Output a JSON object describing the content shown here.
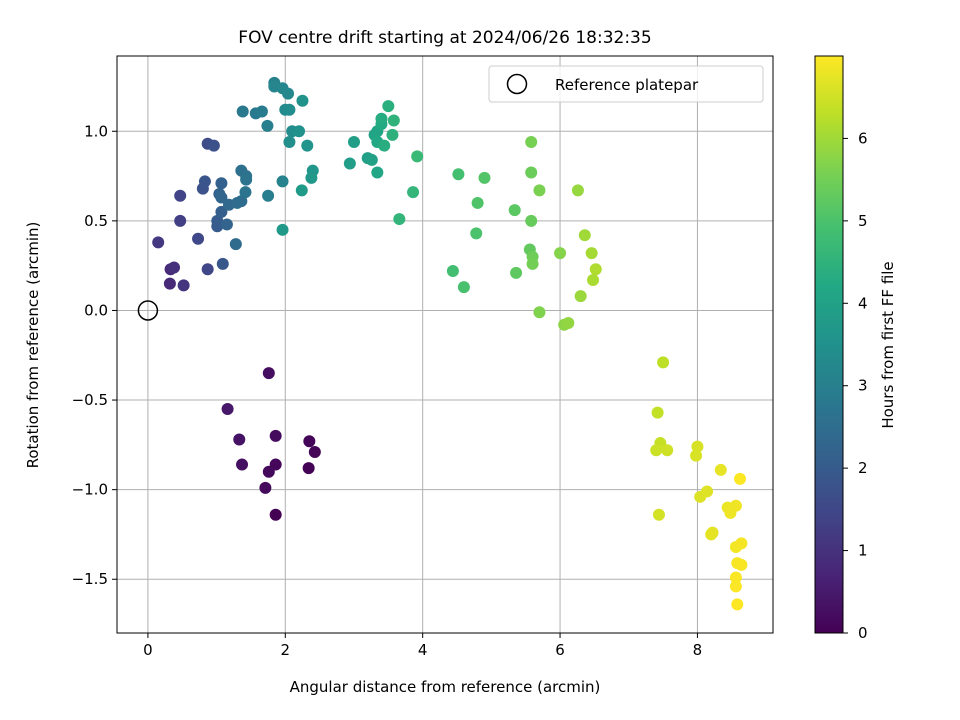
{
  "chart_data": {
    "type": "scatter",
    "title": "FOV centre drift starting at 2024/06/26 18:32:35",
    "xlabel": "Angular distance from reference (arcmin)",
    "ylabel": "Rotation from reference (arcmin)",
    "xlim": [
      -0.45,
      9.1
    ],
    "ylim": [
      -1.8,
      1.42
    ],
    "xticks": [
      0,
      2,
      4,
      6,
      8
    ],
    "yticks": [
      -1.5,
      -1.0,
      -0.5,
      0.0,
      0.5,
      1.0
    ],
    "ytick_labels": [
      "−1.5",
      "−1.0",
      "−0.5",
      "0.0",
      "0.5",
      "1.0"
    ],
    "grid": true,
    "legend": {
      "position": "top-right",
      "entries": [
        "Reference platepar"
      ]
    },
    "reference_point": {
      "name": "Reference platepar",
      "x": 0.0,
      "y": 0.0
    },
    "colorbar": {
      "label": "Hours from first FF file",
      "colormap": "viridis",
      "range": [
        0,
        7.0
      ],
      "ticks": [
        0,
        1,
        2,
        3,
        4,
        5,
        6
      ]
    },
    "series": [
      {
        "color_by": "hours",
        "points": [
          [
            1.86,
            -1.14,
            0.0
          ],
          [
            2.34,
            -0.88,
            0.03
          ],
          [
            2.35,
            -0.73,
            0.06
          ],
          [
            2.43,
            -0.79,
            0.09
          ],
          [
            1.86,
            -0.86,
            0.12
          ],
          [
            1.76,
            -0.9,
            0.15
          ],
          [
            1.71,
            -0.99,
            0.18
          ],
          [
            1.86,
            -0.7,
            0.22
          ],
          [
            1.76,
            -0.35,
            0.25
          ],
          [
            1.37,
            -0.86,
            0.3
          ],
          [
            1.33,
            -0.72,
            0.35
          ],
          [
            1.16,
            -0.55,
            0.45
          ],
          [
            0.32,
            0.15,
            0.8
          ],
          [
            0.33,
            0.23,
            0.85
          ],
          [
            0.38,
            0.24,
            0.95
          ],
          [
            0.52,
            0.14,
            1.05
          ],
          [
            0.15,
            0.38,
            1.15
          ],
          [
            0.47,
            0.5,
            1.3
          ],
          [
            0.47,
            0.64,
            1.4
          ],
          [
            0.87,
            0.23,
            1.45
          ],
          [
            0.73,
            0.4,
            1.5
          ],
          [
            0.87,
            0.93,
            1.6
          ],
          [
            0.96,
            0.92,
            1.7
          ],
          [
            0.8,
            0.68,
            1.75
          ],
          [
            0.83,
            0.72,
            1.85
          ],
          [
            1.09,
            0.26,
            1.9
          ],
          [
            1.01,
            0.47,
            2.0
          ],
          [
            1.01,
            0.5,
            2.05
          ],
          [
            1.07,
            0.55,
            2.1
          ],
          [
            1.07,
            0.71,
            2.15
          ],
          [
            1.04,
            0.65,
            2.2
          ],
          [
            1.15,
            0.48,
            2.25
          ],
          [
            1.07,
            0.63,
            2.3
          ],
          [
            1.18,
            0.59,
            2.35
          ],
          [
            1.28,
            0.37,
            2.4
          ],
          [
            1.3,
            0.6,
            2.45
          ],
          [
            1.36,
            0.61,
            2.5
          ],
          [
            1.36,
            0.78,
            2.55
          ],
          [
            1.43,
            0.75,
            2.6
          ],
          [
            1.43,
            0.73,
            2.65
          ],
          [
            1.42,
            0.66,
            2.7
          ],
          [
            1.38,
            1.11,
            2.8
          ],
          [
            1.57,
            1.1,
            2.85
          ],
          [
            1.66,
            1.11,
            2.9
          ],
          [
            1.75,
            0.64,
            2.95
          ],
          [
            1.74,
            1.03,
            3.0
          ],
          [
            1.84,
            1.27,
            3.05
          ],
          [
            1.96,
            0.72,
            3.1
          ],
          [
            1.84,
            1.25,
            3.15
          ],
          [
            1.96,
            1.24,
            3.2
          ],
          [
            2.04,
            1.21,
            3.25
          ],
          [
            2.0,
            1.12,
            3.3
          ],
          [
            2.06,
            1.12,
            3.35
          ],
          [
            2.1,
            1.0,
            3.4
          ],
          [
            2.06,
            0.94,
            3.45
          ],
          [
            2.2,
            1.0,
            3.5
          ],
          [
            2.25,
            1.17,
            3.55
          ],
          [
            2.32,
            0.92,
            3.6
          ],
          [
            2.4,
            0.78,
            3.65
          ],
          [
            2.38,
            0.74,
            3.7
          ],
          [
            1.96,
            0.45,
            3.75
          ],
          [
            2.24,
            0.67,
            3.8
          ],
          [
            2.94,
            0.82,
            3.85
          ],
          [
            3.0,
            0.94,
            3.9
          ],
          [
            3.2,
            0.85,
            3.95
          ],
          [
            3.26,
            0.84,
            4.0
          ],
          [
            3.3,
            0.98,
            4.05
          ],
          [
            3.34,
            1.0,
            4.1
          ],
          [
            3.34,
            0.77,
            4.15
          ],
          [
            3.34,
            0.94,
            4.2
          ],
          [
            3.4,
            1.04,
            4.25
          ],
          [
            3.4,
            1.07,
            4.3
          ],
          [
            3.44,
            0.92,
            4.35
          ],
          [
            3.5,
            1.14,
            4.4
          ],
          [
            3.56,
            0.98,
            4.45
          ],
          [
            3.58,
            1.06,
            4.5
          ],
          [
            3.66,
            0.51,
            4.55
          ],
          [
            3.86,
            0.66,
            4.6
          ],
          [
            3.92,
            0.86,
            4.7
          ],
          [
            4.44,
            0.22,
            4.85
          ],
          [
            4.52,
            0.76,
            4.9
          ],
          [
            4.6,
            0.13,
            4.95
          ],
          [
            4.78,
            0.43,
            5.0
          ],
          [
            4.8,
            0.6,
            5.05
          ],
          [
            4.9,
            0.74,
            5.1
          ],
          [
            5.34,
            0.56,
            5.2
          ],
          [
            5.36,
            0.21,
            5.25
          ],
          [
            5.56,
            0.34,
            5.3
          ],
          [
            5.58,
            0.5,
            5.35
          ],
          [
            5.58,
            0.77,
            5.4
          ],
          [
            5.6,
            0.3,
            5.45
          ],
          [
            5.6,
            0.26,
            5.5
          ],
          [
            5.58,
            0.94,
            5.55
          ],
          [
            5.7,
            0.67,
            5.6
          ],
          [
            5.7,
            -0.01,
            5.65
          ],
          [
            6.0,
            0.32,
            5.7
          ],
          [
            6.06,
            -0.08,
            5.8
          ],
          [
            6.12,
            -0.07,
            5.85
          ],
          [
            6.26,
            0.67,
            5.9
          ],
          [
            6.3,
            0.08,
            5.95
          ],
          [
            6.36,
            0.42,
            6.0
          ],
          [
            6.46,
            0.32,
            6.05
          ],
          [
            6.48,
            0.17,
            6.1
          ],
          [
            6.52,
            0.23,
            6.15
          ],
          [
            7.5,
            -0.29,
            6.3
          ],
          [
            7.42,
            -0.57,
            6.35
          ],
          [
            7.46,
            -0.74,
            6.4
          ],
          [
            7.4,
            -0.78,
            6.45
          ],
          [
            7.56,
            -0.78,
            6.5
          ],
          [
            7.44,
            -1.14,
            6.55
          ],
          [
            8.0,
            -0.76,
            6.58
          ],
          [
            7.98,
            -0.81,
            6.61
          ],
          [
            8.04,
            -1.04,
            6.64
          ],
          [
            8.14,
            -1.01,
            6.67
          ],
          [
            8.22,
            -1.24,
            6.7
          ],
          [
            8.2,
            -1.25,
            6.73
          ],
          [
            8.34,
            -0.89,
            6.76
          ],
          [
            8.44,
            -1.1,
            6.79
          ],
          [
            8.48,
            -1.13,
            6.82
          ],
          [
            8.56,
            -1.09,
            6.85
          ],
          [
            8.56,
            -1.32,
            6.88
          ],
          [
            8.64,
            -1.3,
            6.9
          ],
          [
            8.58,
            -1.41,
            6.92
          ],
          [
            8.64,
            -1.42,
            6.94
          ],
          [
            8.56,
            -1.49,
            6.96
          ],
          [
            8.56,
            -1.54,
            6.98
          ],
          [
            8.62,
            -0.94,
            6.99
          ],
          [
            8.58,
            -1.64,
            7.0
          ]
        ]
      }
    ]
  }
}
